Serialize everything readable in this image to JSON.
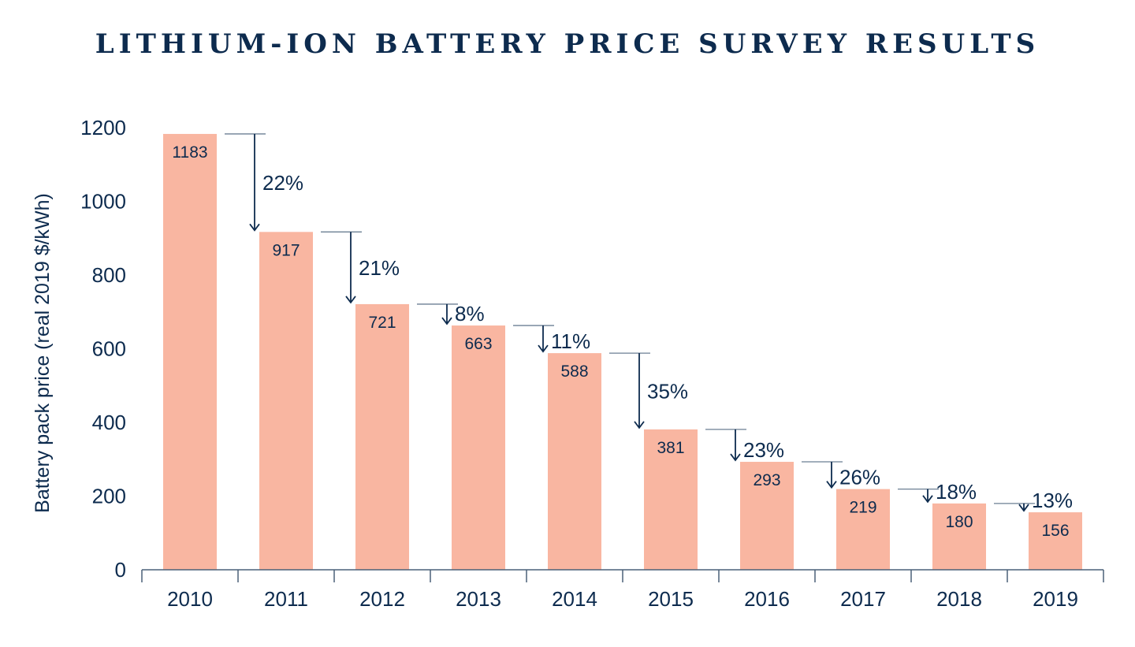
{
  "chart_data": {
    "type": "bar",
    "title": "LITHIUM-ION BATTERY PRICE SURVEY RESULTS",
    "xlabel": "",
    "ylabel": "Battery pack price (real 2019 $/kWh)",
    "ylim": [
      0,
      1200
    ],
    "yticks": [
      0,
      200,
      400,
      600,
      800,
      1000,
      1200
    ],
    "categories": [
      "2010",
      "2011",
      "2012",
      "2013",
      "2014",
      "2015",
      "2016",
      "2017",
      "2018",
      "2019"
    ],
    "values": [
      1183,
      917,
      721,
      663,
      588,
      381,
      293,
      219,
      180,
      156
    ],
    "changes": [
      "22%",
      "21%",
      "8%",
      "11%",
      "35%",
      "23%",
      "26%",
      "18%",
      "13%"
    ],
    "grid": false,
    "legend": "none",
    "colors": {
      "bar": "#f9b6a1",
      "text": "#0d2b4e",
      "axis": "#4a6178",
      "arrow": "#0d2b4e",
      "connector": "#6b7f93"
    }
  }
}
